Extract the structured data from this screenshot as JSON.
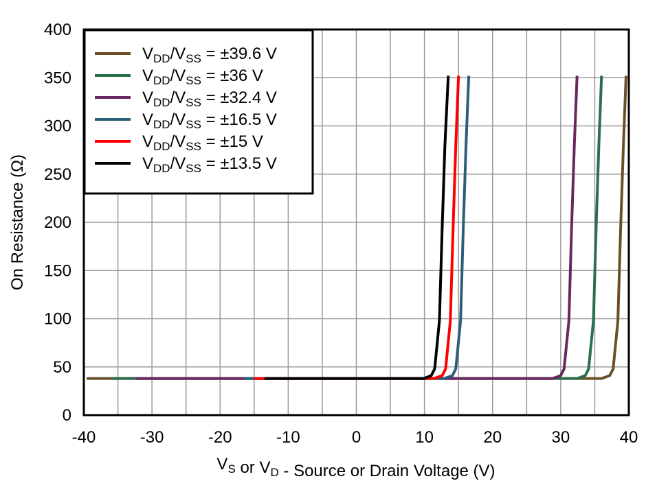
{
  "chart_data": {
    "type": "line",
    "title": "",
    "xlabel": {
      "parts": [
        [
          "V",
          ""
        ],
        [
          "S",
          "sub"
        ],
        [
          " or V",
          ""
        ],
        [
          "D",
          "sub"
        ],
        [
          " - Source or Drain Voltage (V)",
          ""
        ]
      ]
    },
    "ylabel": "On Resistance (Ω)",
    "xlim": [
      -40,
      40
    ],
    "ylim": [
      0,
      400
    ],
    "xticks": [
      -40,
      -30,
      -20,
      -10,
      0,
      10,
      20,
      30,
      40
    ],
    "yticks": [
      0,
      50,
      100,
      150,
      200,
      250,
      300,
      350,
      400
    ],
    "grid": true,
    "legend_position": "top-left",
    "series": [
      {
        "name": "VDD/VSS = ±39.6 V",
        "supply": "±39.6 V",
        "color": "#6B5027",
        "points": [
          [
            -39.6,
            38
          ],
          [
            36.0,
            38
          ],
          [
            37.2,
            41
          ],
          [
            37.7,
            48
          ],
          [
            38.4,
            98
          ],
          [
            38.8,
            194
          ],
          [
            39.2,
            280
          ],
          [
            39.6,
            352
          ]
        ]
      },
      {
        "name": "VDD/VSS = ±36 V",
        "supply": "±36 V",
        "color": "#2A6E4B",
        "points": [
          [
            -36,
            38
          ],
          [
            32.4,
            38
          ],
          [
            33.6,
            41
          ],
          [
            34.1,
            48
          ],
          [
            34.8,
            98
          ],
          [
            35.2,
            194
          ],
          [
            35.6,
            280
          ],
          [
            36,
            352
          ]
        ]
      },
      {
        "name": "VDD/VSS = ±32.4 V",
        "supply": "±32.4 V",
        "color": "#68275F",
        "points": [
          [
            -32.4,
            38
          ],
          [
            28.8,
            38
          ],
          [
            30.0,
            41
          ],
          [
            30.5,
            48
          ],
          [
            31.2,
            98
          ],
          [
            31.6,
            194
          ],
          [
            32.0,
            280
          ],
          [
            32.4,
            352
          ]
        ]
      },
      {
        "name": "VDD/VSS = ±16.5 V",
        "supply": "±16.5 V",
        "color": "#2B5E78",
        "points": [
          [
            -16.5,
            38
          ],
          [
            12.9,
            38
          ],
          [
            14.1,
            41
          ],
          [
            14.6,
            48
          ],
          [
            15.3,
            98
          ],
          [
            15.7,
            194
          ],
          [
            16.1,
            280
          ],
          [
            16.5,
            352
          ]
        ]
      },
      {
        "name": "VDD/VSS = ±15 V",
        "supply": "±15 V",
        "color": "#FF0000",
        "points": [
          [
            -15,
            38
          ],
          [
            11.4,
            38
          ],
          [
            12.6,
            41
          ],
          [
            13.1,
            48
          ],
          [
            13.8,
            98
          ],
          [
            14.2,
            194
          ],
          [
            14.6,
            280
          ],
          [
            15,
            352
          ]
        ]
      },
      {
        "name": "VDD/VSS = ±13.5 V",
        "supply": "±13.5 V",
        "color": "#000000",
        "points": [
          [
            -13.5,
            38
          ],
          [
            9.9,
            38
          ],
          [
            11.0,
            41
          ],
          [
            11.5,
            48
          ],
          [
            12.2,
            98
          ],
          [
            12.6,
            194
          ],
          [
            13.0,
            280
          ],
          [
            13.5,
            352
          ]
        ]
      }
    ]
  }
}
